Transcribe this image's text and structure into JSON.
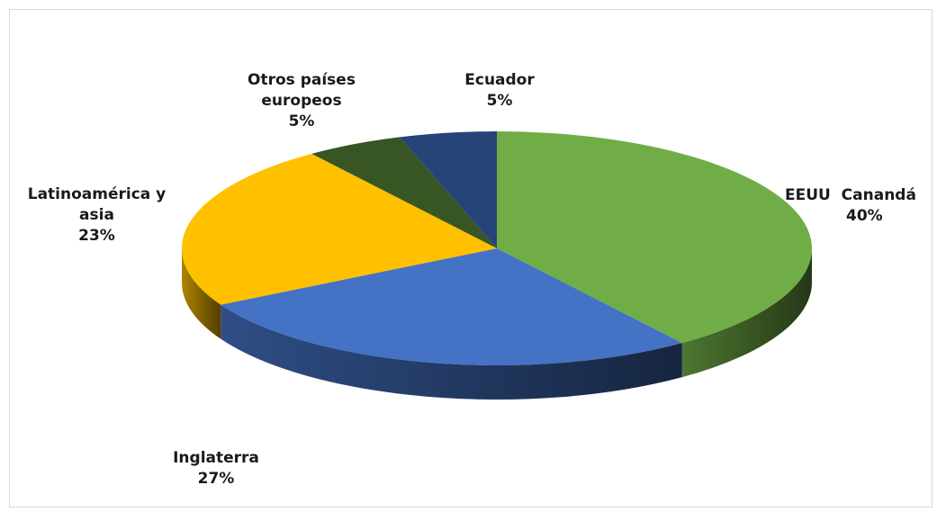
{
  "chart_data": {
    "type": "pie",
    "style": "3d",
    "title": "",
    "slices": [
      {
        "label": "EEUU  Canandá",
        "value": 40,
        "display": "40%",
        "color": "#70ad47"
      },
      {
        "label": "Inglaterra",
        "value": 27,
        "display": "27%",
        "color": "#4472c4"
      },
      {
        "label": "Latinoamérica y asia",
        "value": 23,
        "display": "23%",
        "color": "#ffc000"
      },
      {
        "label": "Otros países europeos",
        "value": 5,
        "display": "5%",
        "color": "#375623"
      },
      {
        "label": "Ecuador",
        "value": 5,
        "display": "5%",
        "color": "#264478"
      }
    ]
  },
  "labels": {
    "ecuador": {
      "name": "Ecuador",
      "pct": "5%"
    },
    "otros": {
      "line1": "Otros países",
      "line2": "europeos",
      "pct": "5%"
    },
    "latam": {
      "line1": "Latinoamérica y",
      "line2": "asia",
      "pct": "23%"
    },
    "eeuu": {
      "name": "EEUU  Canandá",
      "pct": "40%"
    },
    "inglaterra": {
      "name": "Inglaterra",
      "pct": "27%"
    }
  }
}
